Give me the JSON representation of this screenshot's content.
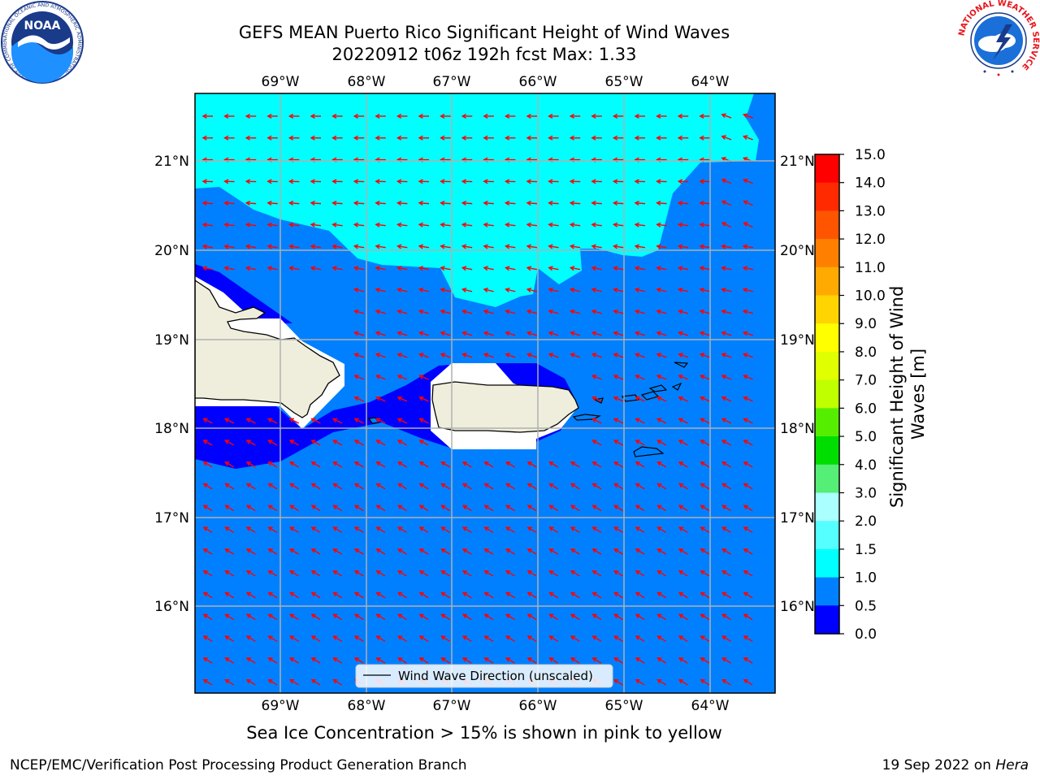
{
  "title": {
    "line1": "GEFS MEAN Puerto Rico Significant Height of Wind Waves",
    "line2": "20220912 t06z 192h fcst   Max: 1.33"
  },
  "map": {
    "lon_labels": [
      "69°W",
      "68°W",
      "67°W",
      "66°W",
      "65°W",
      "64°W"
    ],
    "lat_labels": [
      "21°N",
      "20°N",
      "19°N",
      "18°N",
      "17°N",
      "16°N"
    ],
    "legend_label": "Wind Wave Direction (unscaled)",
    "arrow_color": "#ff0000",
    "ocean_colors": {
      "0.0-0.5": "#0000ff",
      "0.5-1.0": "#0080ff",
      "1.0-1.5": "#00ffff",
      "land": "#efeedc"
    }
  },
  "colorbar": {
    "label": "Significant Height of Wind Waves [m]",
    "ticks": [
      "15.0",
      "14.0",
      "13.0",
      "12.0",
      "11.0",
      "10.0",
      "9.0",
      "8.0",
      "7.0",
      "6.0",
      "5.0",
      "4.0",
      "3.0",
      "2.0",
      "1.5",
      "1.0",
      "0.5",
      "0.0"
    ],
    "bins": [
      {
        "range": "14.0-15.0",
        "color": "#ff0000"
      },
      {
        "range": "13.0-14.0",
        "color": "#ff2a00"
      },
      {
        "range": "12.0-13.0",
        "color": "#ff5500"
      },
      {
        "range": "11.0-12.0",
        "color": "#ff8000"
      },
      {
        "range": "10.0-11.0",
        "color": "#ffaa00"
      },
      {
        "range": "9.0-10.0",
        "color": "#ffd400"
      },
      {
        "range": "8.0-9.0",
        "color": "#ffff00"
      },
      {
        "range": "7.0-8.0",
        "color": "#e0ff00"
      },
      {
        "range": "6.0-7.0",
        "color": "#c0ff00"
      },
      {
        "range": "5.0-6.0",
        "color": "#55ee00"
      },
      {
        "range": "4.0-5.0",
        "color": "#00dd00"
      },
      {
        "range": "3.0-4.0",
        "color": "#55ee77"
      },
      {
        "range": "2.0-3.0",
        "color": "#aaffff"
      },
      {
        "range": "1.5-2.0",
        "color": "#55ffff"
      },
      {
        "range": "1.0-1.5",
        "color": "#00ffff"
      },
      {
        "range": "0.5-1.0",
        "color": "#0080ff"
      },
      {
        "range": "0.0-0.5",
        "color": "#0000ff"
      }
    ]
  },
  "caption": "Sea Ice Concentration > 15% is shown in pink to yellow",
  "footer": {
    "left": "NCEP/EMC/Verification Post Processing Product Generation Branch",
    "right_prefix": "19 Sep 2022 on ",
    "right_host": "Hera"
  },
  "logos": {
    "noaa_text": "NOAA",
    "noaa_ring": "NATIONAL OCEANIC AND ATMOSPHERIC ADMINISTRATION · U.S. DEPARTMENT OF COMMERCE",
    "nws_ring": "NATIONAL WEATHER SERVICE"
  }
}
